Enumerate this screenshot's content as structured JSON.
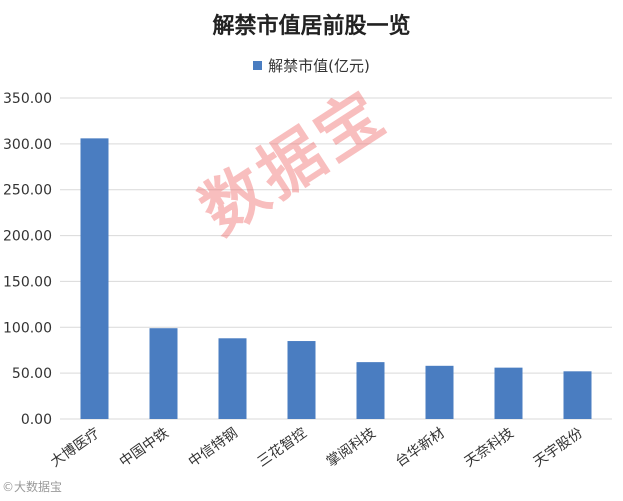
{
  "chart_data": {
    "type": "bar",
    "title": "解禁市值居前股一览",
    "series": [
      {
        "name": "解禁市值(亿元)",
        "color": "#4a7dc1",
        "values": [
          306,
          99,
          88,
          85,
          62,
          58,
          56,
          52
        ]
      }
    ],
    "categories": [
      "大博医疗",
      "中国中铁",
      "中信特钢",
      "三花智控",
      "掌阅科技",
      "台华新材",
      "天奈科技",
      "天宇股份"
    ],
    "yticks": [
      "0.00",
      "50.00",
      "100.00",
      "150.00",
      "200.00",
      "250.00",
      "300.00",
      "350.00"
    ],
    "ylim": [
      0,
      350
    ],
    "grid": true,
    "legend_position": "top-center"
  },
  "watermark": "数据宝",
  "footer_logo": "©大数据宝"
}
